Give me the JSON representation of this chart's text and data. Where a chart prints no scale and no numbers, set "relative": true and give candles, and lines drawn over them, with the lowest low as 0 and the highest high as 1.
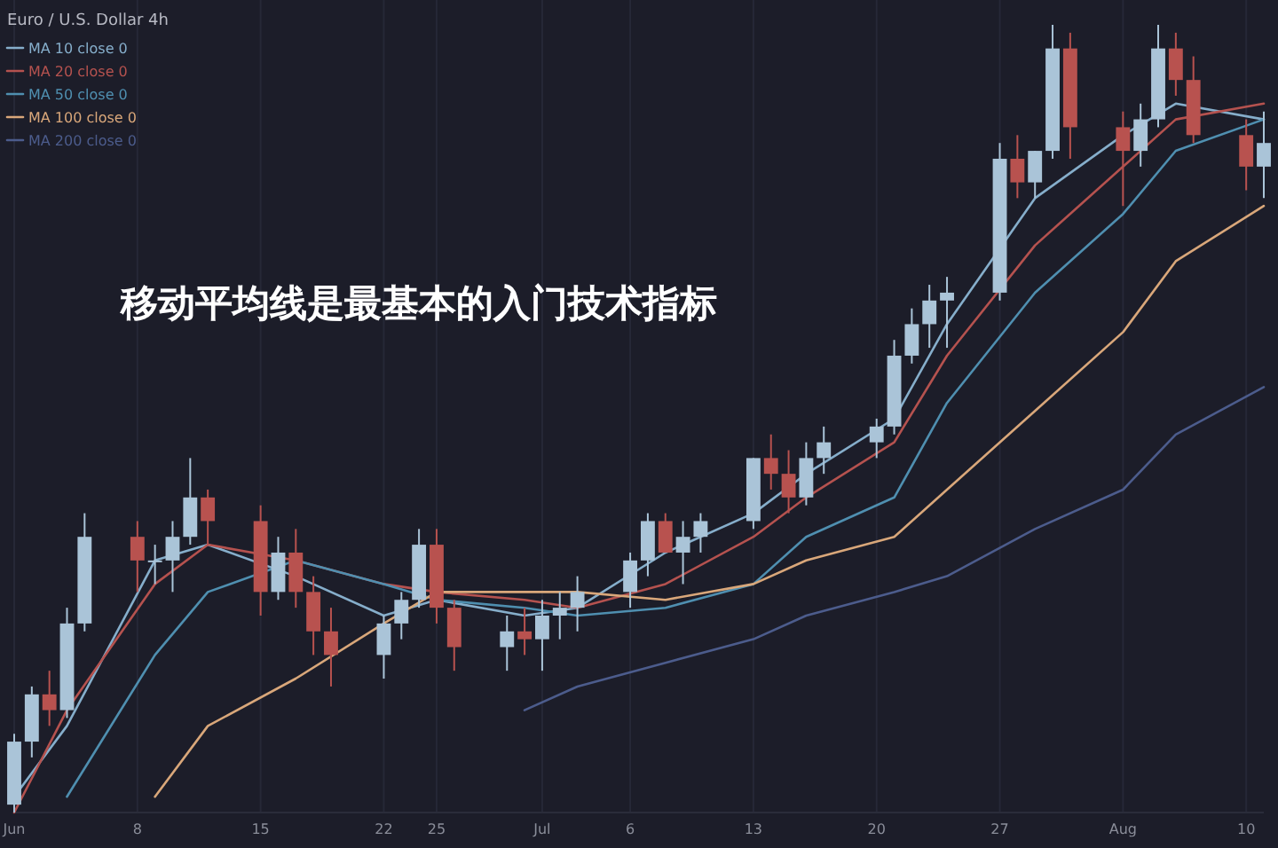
{
  "chart_data": {
    "type": "candlestick",
    "relative": true,
    "title": "移动平均线是最基本的入门技术指标",
    "subtitle": "Euro / U.S. Dollar 4h",
    "legend": "top left",
    "grid": "x",
    "x": [
      "--06-01",
      "--06-02",
      "--06-03",
      "--06-04",
      "--06-05",
      "--06-08",
      "--06-09",
      "--06-10",
      "--06-11",
      "--06-12",
      "--06-15",
      "--06-16",
      "--06-17",
      "--06-18",
      "--06-19",
      "--06-22",
      "--06-23",
      "--06-24",
      "--06-25",
      "--06-26",
      "--06-29",
      "--06-30",
      "--07-01",
      "--07-02",
      "--07-03",
      "--07-06",
      "--07-07",
      "--07-08",
      "--07-09",
      "--07-10",
      "--07-13",
      "--07-14",
      "--07-15",
      "--07-16",
      "--07-17",
      "--07-20",
      "--07-21",
      "--07-22",
      "--07-23",
      "--07-24",
      "--07-27",
      "--07-28",
      "--07-29",
      "--07-30",
      "--07-31",
      "--08-03",
      "--08-04",
      "--08-05",
      "--08-06",
      "--08-07",
      "--08-10",
      "--08-11"
    ],
    "ohlc": [
      [
        0.01,
        0.1,
        0,
        0.09
      ],
      [
        0.09,
        0.16,
        0.07,
        0.15
      ],
      [
        0.15,
        0.18,
        0.11,
        0.13
      ],
      [
        0.13,
        0.26,
        0.12,
        0.24
      ],
      [
        0.24,
        0.38,
        0.23,
        0.35
      ],
      [
        0.35,
        0.37,
        0.28,
        0.32
      ],
      [
        0.32,
        0.34,
        0.29,
        0.32
      ],
      [
        0.32,
        0.37,
        0.28,
        0.35
      ],
      [
        0.35,
        0.45,
        0.34,
        0.4
      ],
      [
        0.4,
        0.41,
        0.34,
        0.37
      ],
      [
        0.37,
        0.39,
        0.25,
        0.28
      ],
      [
        0.28,
        0.35,
        0.27,
        0.33
      ],
      [
        0.33,
        0.36,
        0.26,
        0.28
      ],
      [
        0.28,
        0.3,
        0.2,
        0.23
      ],
      [
        0.23,
        0.26,
        0.16,
        0.2
      ],
      [
        0.2,
        0.25,
        0.17,
        0.24
      ],
      [
        0.24,
        0.28,
        0.22,
        0.27
      ],
      [
        0.27,
        0.36,
        0.26,
        0.34
      ],
      [
        0.34,
        0.36,
        0.24,
        0.26
      ],
      [
        0.26,
        0.27,
        0.18,
        0.21
      ],
      [
        0.21,
        0.25,
        0.18,
        0.23
      ],
      [
        0.23,
        0.26,
        0.2,
        0.22
      ],
      [
        0.22,
        0.27,
        0.18,
        0.25
      ],
      [
        0.25,
        0.28,
        0.22,
        0.26
      ],
      [
        0.26,
        0.3,
        0.23,
        0.28
      ],
      [
        0.28,
        0.33,
        0.26,
        0.32
      ],
      [
        0.32,
        0.38,
        0.3,
        0.37
      ],
      [
        0.37,
        0.38,
        0.33,
        0.33
      ],
      [
        0.33,
        0.37,
        0.29,
        0.35
      ],
      [
        0.35,
        0.38,
        0.33,
        0.37
      ],
      [
        0.37,
        0.45,
        0.36,
        0.45
      ],
      [
        0.45,
        0.48,
        0.41,
        0.43
      ],
      [
        0.43,
        0.46,
        0.38,
        0.4
      ],
      [
        0.4,
        0.47,
        0.39,
        0.45
      ],
      [
        0.45,
        0.49,
        0.43,
        0.47
      ],
      [
        0.47,
        0.5,
        0.45,
        0.49
      ],
      [
        0.49,
        0.6,
        0.48,
        0.58
      ],
      [
        0.58,
        0.64,
        0.57,
        0.62
      ],
      [
        0.62,
        0.67,
        0.59,
        0.65
      ],
      [
        0.65,
        0.68,
        0.59,
        0.66
      ],
      [
        0.66,
        0.85,
        0.65,
        0.83
      ],
      [
        0.83,
        0.86,
        0.78,
        0.8
      ],
      [
        0.8,
        0.84,
        0.78,
        0.84
      ],
      [
        0.84,
        1.0,
        0.83,
        0.97
      ],
      [
        0.97,
        0.99,
        0.83,
        0.87
      ],
      [
        0.87,
        0.89,
        0.77,
        0.84
      ],
      [
        0.84,
        0.9,
        0.82,
        0.88
      ],
      [
        0.88,
        1.0,
        0.87,
        0.97
      ],
      [
        0.97,
        0.99,
        0.91,
        0.93
      ],
      [
        0.93,
        0.96,
        0.85,
        0.86
      ],
      [
        0.86,
        0.88,
        0.79,
        0.82
      ],
      [
        0.82,
        0.89,
        0.78,
        0.85
      ]
    ],
    "colors": [
      "#aac4d8",
      "#aac4d8",
      "#b8524f",
      "#aac4d8",
      "#aac4d8",
      "#b8524f",
      "#aac4d8",
      "#aac4d8",
      "#aac4d8",
      "#b8524f",
      "#b8524f",
      "#aac4d8",
      "#b8524f",
      "#b8524f",
      "#b8524f",
      "#aac4d8",
      "#aac4d8",
      "#aac4d8",
      "#b8524f",
      "#b8524f",
      "#aac4d8",
      "#b8524f",
      "#aac4d8",
      "#aac4d8",
      "#aac4d8",
      "#aac4d8",
      "#aac4d8",
      "#b8524f",
      "#aac4d8",
      "#aac4d8",
      "#aac4d8",
      "#b8524f",
      "#b8524f",
      "#aac4d8",
      "#aac4d8",
      "#aac4d8",
      "#aac4d8",
      "#aac4d8",
      "#aac4d8",
      "#aac4d8",
      "#aac4d8",
      "#b8524f",
      "#aac4d8",
      "#aac4d8",
      "#b8524f",
      "#b8524f",
      "#aac4d8",
      "#aac4d8",
      "#b8524f",
      "#b8524f",
      "#b8524f",
      "#aac4d8"
    ],
    "xlim": [
      "--06-01",
      "--08-11"
    ],
    "xticks": [
      {
        "value": "--06-01",
        "label": "Jun"
      },
      {
        "value": "--06-08",
        "label": "8"
      },
      {
        "value": "--06-15",
        "label": "15"
      },
      {
        "value": "--06-22",
        "label": "22"
      },
      {
        "value": "--06-25",
        "label": "25"
      },
      {
        "value": "--07-01",
        "label": "Jul"
      },
      {
        "value": "--07-06",
        "label": "6"
      },
      {
        "value": "--07-13",
        "label": "13"
      },
      {
        "value": "--07-20",
        "label": "20"
      },
      {
        "value": "--07-27",
        "label": "27"
      },
      {
        "value": "--08-03",
        "label": "Aug"
      },
      {
        "value": "--08-10",
        "label": "10"
      }
    ],
    "series": [
      {
        "name": "MA 10 close 0",
        "type": "line",
        "color": "#86aecb",
        "x": [
          "--06-01",
          "--06-04",
          "--06-09",
          "--06-12",
          "--06-17",
          "--06-22",
          "--06-25",
          "--06-30",
          "--07-03",
          "--07-08",
          "--07-13",
          "--07-16",
          "--07-21",
          "--07-24",
          "--07-29",
          "--08-03",
          "--08-06",
          "--08-11"
        ],
        "values": [
          0.02,
          0.11,
          0.32,
          0.34,
          0.3,
          0.25,
          0.27,
          0.25,
          0.26,
          0.33,
          0.38,
          0.43,
          0.5,
          0.62,
          0.78,
          0.86,
          0.9,
          0.88
        ]
      },
      {
        "name": "MA 20 close 0",
        "type": "line",
        "color": "#b5524f",
        "x": [
          "--06-01",
          "--06-04",
          "--06-09",
          "--06-12",
          "--06-17",
          "--06-22",
          "--06-25",
          "--06-30",
          "--07-03",
          "--07-08",
          "--07-13",
          "--07-16",
          "--07-21",
          "--07-24",
          "--07-29",
          "--08-03",
          "--08-06",
          "--08-11"
        ],
        "values": [
          0,
          0.13,
          0.29,
          0.34,
          0.32,
          0.29,
          0.28,
          0.27,
          0.26,
          0.29,
          0.35,
          0.4,
          0.47,
          0.58,
          0.72,
          0.82,
          0.88,
          0.9
        ]
      },
      {
        "name": "MA 50 close 0",
        "type": "line",
        "color": "#4f8fb0",
        "x": [
          "--06-04",
          "--06-09",
          "--06-12",
          "--06-17",
          "--06-22",
          "--06-25",
          "--06-30",
          "--07-03",
          "--07-08",
          "--07-13",
          "--07-16",
          "--07-21",
          "--07-24",
          "--07-29",
          "--08-03",
          "--08-06",
          "--08-11"
        ],
        "values": [
          0.02,
          0.2,
          0.28,
          0.32,
          0.29,
          0.27,
          0.26,
          0.25,
          0.26,
          0.29,
          0.35,
          0.4,
          0.52,
          0.66,
          0.76,
          0.84,
          0.88
        ]
      },
      {
        "name": "MA 100 close 0",
        "type": "line",
        "color": "#d9a77a",
        "x": [
          "--06-09",
          "--06-12",
          "--06-17",
          "--06-22",
          "--06-25",
          "--06-30",
          "--07-03",
          "--07-08",
          "--07-13",
          "--07-16",
          "--07-21",
          "--07-24",
          "--07-29",
          "--08-03",
          "--08-06",
          "--08-11"
        ],
        "values": [
          0.02,
          0.11,
          0.17,
          0.24,
          0.28,
          0.28,
          0.28,
          0.27,
          0.29,
          0.32,
          0.35,
          0.41,
          0.51,
          0.61,
          0.7,
          0.77
        ]
      },
      {
        "name": "MA 200 close 0",
        "type": "line",
        "color": "#4c5c8c",
        "x": [
          "--06-30",
          "--07-03",
          "--07-08",
          "--07-13",
          "--07-16",
          "--07-21",
          "--07-24",
          "--07-29",
          "--08-03",
          "--08-06",
          "--08-11"
        ],
        "values": [
          0.13,
          0.16,
          0.19,
          0.22,
          0.25,
          0.28,
          0.3,
          0.36,
          0.41,
          0.48,
          0.54
        ]
      }
    ]
  }
}
